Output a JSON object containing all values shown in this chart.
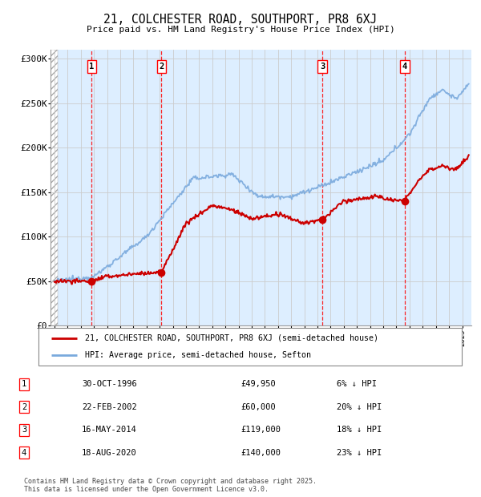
{
  "title": "21, COLCHESTER ROAD, SOUTHPORT, PR8 6XJ",
  "subtitle": "Price paid vs. HM Land Registry's House Price Index (HPI)",
  "ylabel_ticks": [
    "£0",
    "£50K",
    "£100K",
    "£150K",
    "£200K",
    "£250K",
    "£300K"
  ],
  "ytick_values": [
    0,
    50000,
    100000,
    150000,
    200000,
    250000,
    300000
  ],
  "ylim": [
    0,
    310000
  ],
  "xlim_start": 1993.7,
  "xlim_end": 2025.7,
  "sales": [
    {
      "label": 1,
      "date_str": "30-OCT-1996",
      "year": 1996.83,
      "price": 49950,
      "hpi_pct": "6% ↓ HPI"
    },
    {
      "label": 2,
      "date_str": "22-FEB-2002",
      "year": 2002.14,
      "price": 60000,
      "hpi_pct": "20% ↓ HPI"
    },
    {
      "label": 3,
      "date_str": "16-MAY-2014",
      "year": 2014.37,
      "price": 119000,
      "hpi_pct": "18% ↓ HPI"
    },
    {
      "label": 4,
      "date_str": "18-AUG-2020",
      "year": 2020.63,
      "price": 140000,
      "hpi_pct": "23% ↓ HPI"
    }
  ],
  "legend_property_label": "21, COLCHESTER ROAD, SOUTHPORT, PR8 6XJ (semi-detached house)",
  "legend_hpi_label": "HPI: Average price, semi-detached house, Sefton",
  "footnote": "Contains HM Land Registry data © Crown copyright and database right 2025.\nThis data is licensed under the Open Government Licence v3.0.",
  "property_color": "#cc0000",
  "hpi_color": "#7aaadd",
  "grid_color": "#cccccc",
  "background_color": "#ddeeff"
}
